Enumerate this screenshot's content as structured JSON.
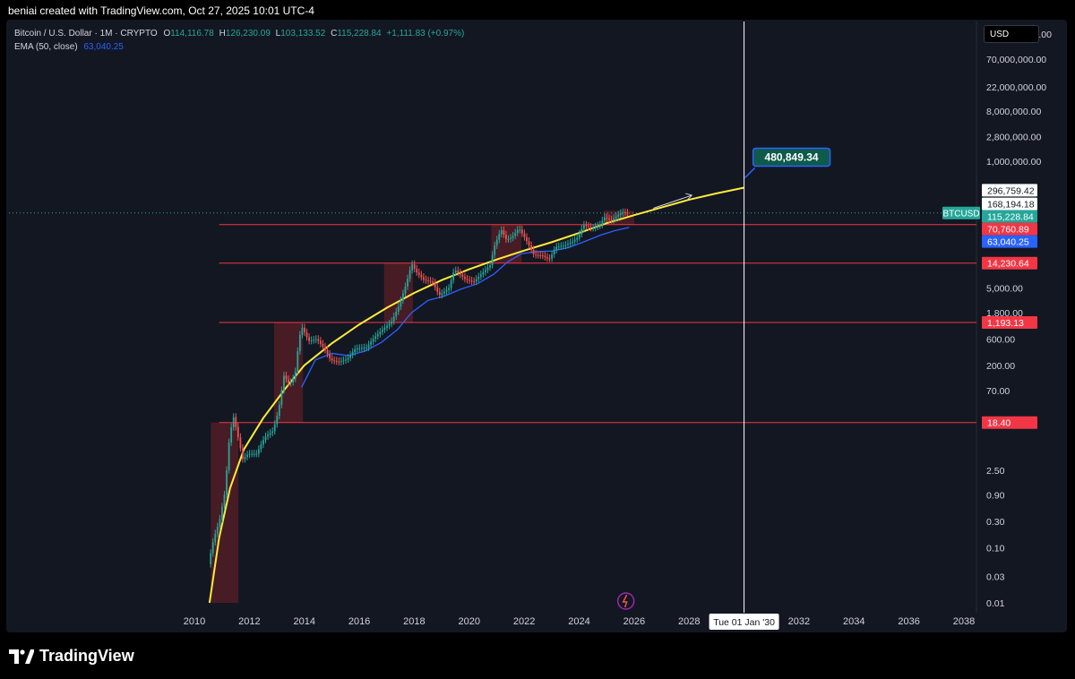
{
  "header": {
    "text": "beniai created with TradingView.com, Oct 27, 2025 10:01 UTC-4"
  },
  "legend": {
    "symbol": "Bitcoin / U.S. Dollar · 1M · CRYPTO",
    "o_label": "O",
    "o": "114,116.78",
    "h_label": "H",
    "h": "126,230.09",
    "l_label": "L",
    "l": "103,133.52",
    "c_label": "C",
    "c": "115,228.84",
    "change": "+1,111.83 (+0.97%)",
    "ema_label": "EMA (50, close)",
    "ema_value": "63,040.25"
  },
  "currency_button": "USD",
  "brand": {
    "name": "TradingView"
  },
  "colors": {
    "background": "#131722",
    "up": "#26a69a",
    "down": "#ef5350",
    "ema": "#2962ff",
    "curve": "#ffeb3b",
    "level_line": "#f23645",
    "zone": "#5b1f27"
  },
  "chart_data": {
    "type": "line",
    "symbol_label": "BTCUSD",
    "scale": "log",
    "x_ticks": [
      "2010",
      "2012",
      "2014",
      "2016",
      "2018",
      "2020",
      "2022",
      "2024",
      "2026",
      "2028",
      "2030",
      "2032",
      "2034",
      "2036",
      "2038"
    ],
    "y_ticks": [
      "200,000,000.00",
      "70,000,000.00",
      "22,000,000.00",
      "8,000,000.00",
      "2,800,000.00",
      "1,000,000.00",
      "5,000.00",
      "1,800.00",
      "600.00",
      "200.00",
      "70.00",
      "2.50",
      "0.90",
      "0.30",
      "0.10",
      "0.03",
      "0.01"
    ],
    "price_labels": [
      {
        "text": "296,759.42",
        "value": 296759.42,
        "style": "plain"
      },
      {
        "text": "168,194.18",
        "value": 168194.18,
        "style": "plain"
      },
      {
        "text": "115,228.84",
        "value": 115228.84,
        "style": "last"
      },
      {
        "text": "70,760.89",
        "value": 70760.89,
        "style": "level"
      },
      {
        "text": "63,040.25",
        "value": 63040.25,
        "style": "ema"
      },
      {
        "text": "14,230.64",
        "value": 14230.64,
        "style": "level"
      },
      {
        "text": "1,193.13",
        "value": 1193.13,
        "style": "level"
      },
      {
        "text": "18.40",
        "value": 18.4,
        "style": "level"
      }
    ],
    "horizontal_levels": [
      70760.89,
      14230.64,
      1193.13,
      18.4
    ],
    "last_price": 115228.84,
    "ema_value": 63040.25,
    "target_date_label": "Tue 01 Jan '30",
    "target_date": 2030.0,
    "target_value_label": "480,849.34",
    "target_value": 480849.34,
    "cycle_zones": [
      {
        "x0": 2010.6,
        "x1": 2011.6,
        "low": 0.01,
        "high": 18.4
      },
      {
        "x0": 2012.9,
        "x1": 2013.95,
        "low": 18.4,
        "high": 1193.13
      },
      {
        "x0": 2016.9,
        "x1": 2017.95,
        "low": 1193.13,
        "high": 14230.64
      },
      {
        "x0": 2020.8,
        "x1": 2021.9,
        "low": 14230.64,
        "high": 70760.89
      },
      {
        "x0": 2024.9,
        "x1": 2026.0,
        "low": 70760.89,
        "high": 126230.09
      }
    ],
    "price_series": [
      {
        "t": 2010.55,
        "v": 0.05
      },
      {
        "t": 2010.75,
        "v": 0.15
      },
      {
        "t": 2010.95,
        "v": 0.3
      },
      {
        "t": 2011.15,
        "v": 1.0
      },
      {
        "t": 2011.3,
        "v": 8
      },
      {
        "t": 2011.45,
        "v": 25
      },
      {
        "t": 2011.6,
        "v": 12
      },
      {
        "t": 2011.8,
        "v": 4
      },
      {
        "t": 2012.0,
        "v": 5
      },
      {
        "t": 2012.3,
        "v": 5
      },
      {
        "t": 2012.6,
        "v": 10
      },
      {
        "t": 2012.9,
        "v": 13
      },
      {
        "t": 2013.1,
        "v": 30
      },
      {
        "t": 2013.3,
        "v": 130
      },
      {
        "t": 2013.5,
        "v": 90
      },
      {
        "t": 2013.7,
        "v": 130
      },
      {
        "t": 2013.85,
        "v": 600
      },
      {
        "t": 2013.95,
        "v": 1000
      },
      {
        "t": 2014.2,
        "v": 550
      },
      {
        "t": 2014.5,
        "v": 600
      },
      {
        "t": 2014.8,
        "v": 380
      },
      {
        "t": 2015.0,
        "v": 250
      },
      {
        "t": 2015.3,
        "v": 230
      },
      {
        "t": 2015.6,
        "v": 260
      },
      {
        "t": 2015.9,
        "v": 400
      },
      {
        "t": 2016.3,
        "v": 420
      },
      {
        "t": 2016.6,
        "v": 650
      },
      {
        "t": 2016.9,
        "v": 900
      },
      {
        "t": 2017.2,
        "v": 1200
      },
      {
        "t": 2017.5,
        "v": 2500
      },
      {
        "t": 2017.75,
        "v": 6000
      },
      {
        "t": 2017.95,
        "v": 14000
      },
      {
        "t": 2018.1,
        "v": 10000
      },
      {
        "t": 2018.4,
        "v": 7000
      },
      {
        "t": 2018.7,
        "v": 6500
      },
      {
        "t": 2018.95,
        "v": 3700
      },
      {
        "t": 2019.3,
        "v": 5000
      },
      {
        "t": 2019.5,
        "v": 11000
      },
      {
        "t": 2019.9,
        "v": 7200
      },
      {
        "t": 2020.2,
        "v": 6500
      },
      {
        "t": 2020.5,
        "v": 9200
      },
      {
        "t": 2020.8,
        "v": 13000
      },
      {
        "t": 2020.95,
        "v": 28000
      },
      {
        "t": 2021.2,
        "v": 58000
      },
      {
        "t": 2021.4,
        "v": 37000
      },
      {
        "t": 2021.6,
        "v": 42000
      },
      {
        "t": 2021.85,
        "v": 61000
      },
      {
        "t": 2022.1,
        "v": 38000
      },
      {
        "t": 2022.4,
        "v": 20000
      },
      {
        "t": 2022.7,
        "v": 19500
      },
      {
        "t": 2022.95,
        "v": 16500
      },
      {
        "t": 2023.2,
        "v": 28000
      },
      {
        "t": 2023.5,
        "v": 29500
      },
      {
        "t": 2023.8,
        "v": 35000
      },
      {
        "t": 2024.0,
        "v": 42000
      },
      {
        "t": 2024.2,
        "v": 70000
      },
      {
        "t": 2024.5,
        "v": 60000
      },
      {
        "t": 2024.8,
        "v": 70000
      },
      {
        "t": 2024.95,
        "v": 96000
      },
      {
        "t": 2025.2,
        "v": 84000
      },
      {
        "t": 2025.45,
        "v": 105000
      },
      {
        "t": 2025.6,
        "v": 118000
      },
      {
        "t": 2025.82,
        "v": 115228.84
      }
    ],
    "ema_series": [
      {
        "t": 2013.9,
        "v": 80
      },
      {
        "t": 2014.4,
        "v": 250
      },
      {
        "t": 2015.0,
        "v": 330
      },
      {
        "t": 2015.6,
        "v": 300
      },
      {
        "t": 2016.2,
        "v": 360
      },
      {
        "t": 2016.8,
        "v": 520
      },
      {
        "t": 2017.4,
        "v": 900
      },
      {
        "t": 2017.9,
        "v": 1800
      },
      {
        "t": 2018.5,
        "v": 3000
      },
      {
        "t": 2019.1,
        "v": 3600
      },
      {
        "t": 2019.7,
        "v": 4800
      },
      {
        "t": 2020.3,
        "v": 6000
      },
      {
        "t": 2020.9,
        "v": 9000
      },
      {
        "t": 2021.4,
        "v": 15000
      },
      {
        "t": 2021.9,
        "v": 21000
      },
      {
        "t": 2022.5,
        "v": 23000
      },
      {
        "t": 2023.0,
        "v": 23500
      },
      {
        "t": 2023.6,
        "v": 27000
      },
      {
        "t": 2024.2,
        "v": 35000
      },
      {
        "t": 2024.8,
        "v": 46000
      },
      {
        "t": 2025.3,
        "v": 55000
      },
      {
        "t": 2025.82,
        "v": 63040.25
      }
    ],
    "curve_series": [
      {
        "t": 2010.55,
        "v": 0.01
      },
      {
        "t": 2010.9,
        "v": 0.15
      },
      {
        "t": 2011.3,
        "v": 1.2
      },
      {
        "t": 2011.8,
        "v": 6
      },
      {
        "t": 2012.5,
        "v": 22
      },
      {
        "t": 2013.3,
        "v": 75
      },
      {
        "t": 2014.0,
        "v": 200
      },
      {
        "t": 2015.0,
        "v": 500
      },
      {
        "t": 2016.0,
        "v": 1100
      },
      {
        "t": 2017.0,
        "v": 2200
      },
      {
        "t": 2018.0,
        "v": 4100
      },
      {
        "t": 2019.0,
        "v": 7000
      },
      {
        "t": 2020.0,
        "v": 11000
      },
      {
        "t": 2021.0,
        "v": 16500
      },
      {
        "t": 2022.0,
        "v": 24000
      },
      {
        "t": 2023.0,
        "v": 34000
      },
      {
        "t": 2024.0,
        "v": 50000
      },
      {
        "t": 2025.0,
        "v": 75000
      },
      {
        "t": 2026.0,
        "v": 105000
      },
      {
        "t": 2027.0,
        "v": 145000
      },
      {
        "t": 2028.0,
        "v": 200000
      },
      {
        "t": 2029.0,
        "v": 260000
      },
      {
        "t": 2030.0,
        "v": 330000
      }
    ]
  }
}
